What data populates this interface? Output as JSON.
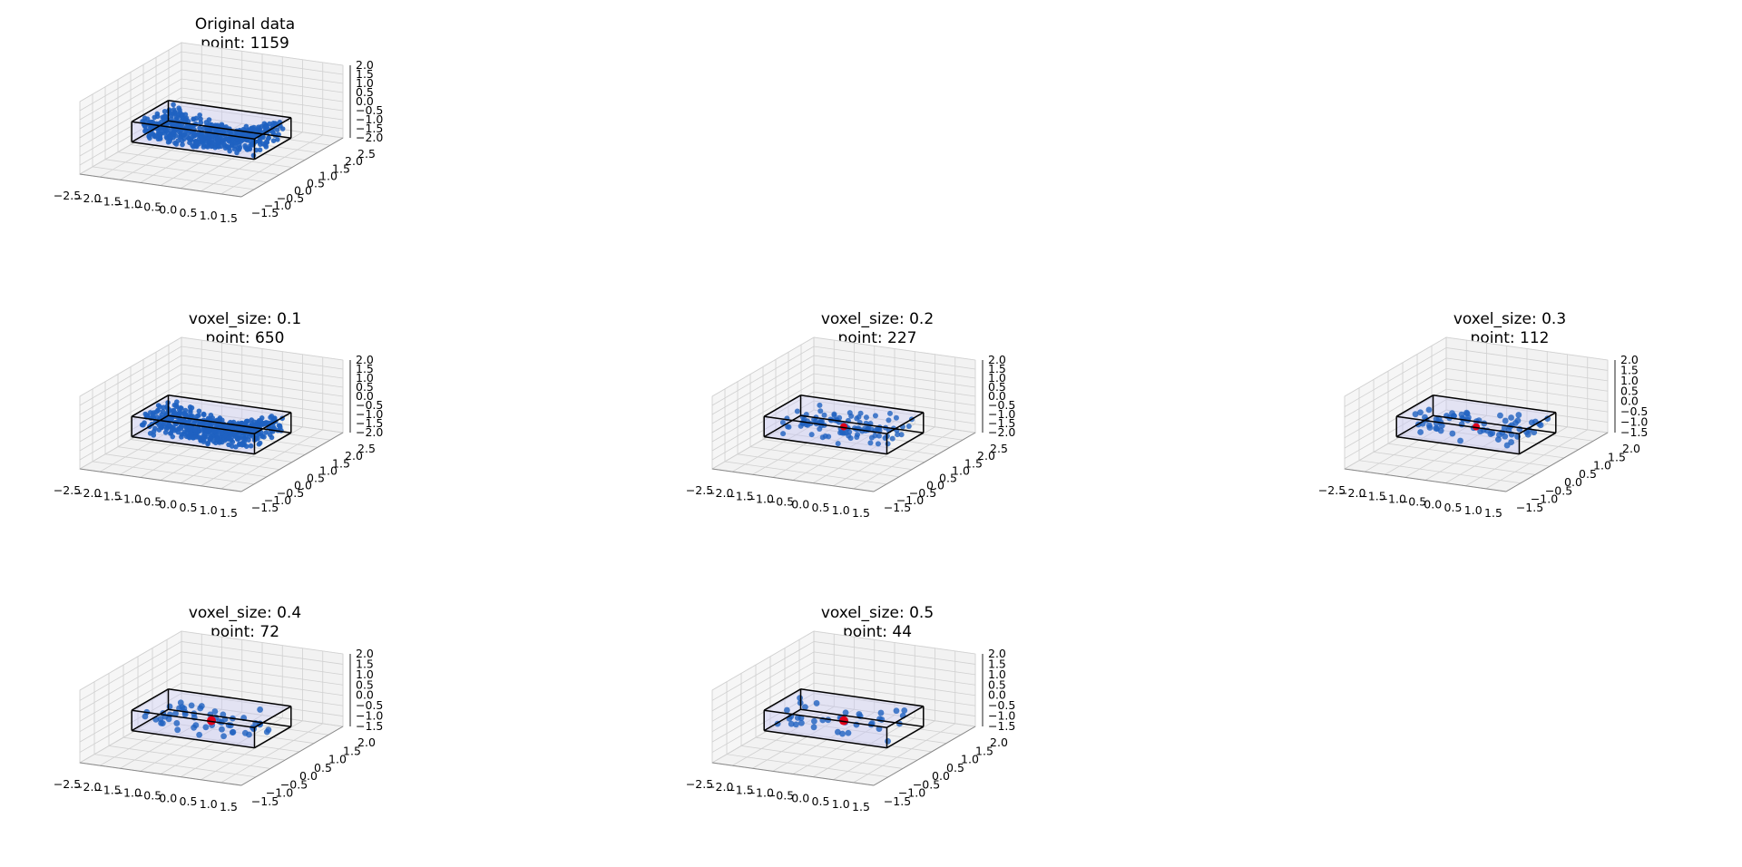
{
  "figure": {
    "panels": [
      {
        "title": "Original data",
        "subtitle": "point: 1159",
        "highlight": false,
        "z_ticks": [
          "2.0",
          "1.5",
          "1.0",
          "0.5",
          "0.0",
          "−0.5",
          "−1.0",
          "−1.5",
          "−2.0"
        ],
        "y_ticks": [
          "−1.5",
          "−1.0",
          "−0.5",
          "0.0",
          "0.5",
          "1.0",
          "1.5",
          "2.0",
          "2.5"
        ]
      },
      {
        "title": "voxel_size: 0.1",
        "subtitle": "point: 650",
        "highlight": false,
        "z_ticks": [
          "2.0",
          "1.5",
          "1.0",
          "0.5",
          "0.0",
          "−0.5",
          "−1.0",
          "−1.5",
          "−2.0"
        ],
        "y_ticks": [
          "−1.5",
          "−1.0",
          "−0.5",
          "0.0",
          "0.5",
          "1.0",
          "1.5",
          "2.0",
          "2.5"
        ]
      },
      {
        "title": "voxel_size: 0.2",
        "subtitle": "point: 227",
        "highlight": true,
        "z_ticks": [
          "2.0",
          "1.5",
          "1.0",
          "0.5",
          "0.0",
          "−0.5",
          "−1.0",
          "−1.5",
          "−2.0"
        ],
        "y_ticks": [
          "−1.5",
          "−1.0",
          "−0.5",
          "0.0",
          "0.5",
          "1.0",
          "1.5",
          "2.0",
          "2.5"
        ]
      },
      {
        "title": "voxel_size: 0.3",
        "subtitle": "point: 112",
        "highlight": true,
        "z_ticks": [
          "2.0",
          "1.5",
          "1.0",
          "0.5",
          "0.0",
          "−0.5",
          "−1.0",
          "−1.5"
        ],
        "y_ticks": [
          "−1.5",
          "−1.0",
          "−0.5",
          "0.0",
          "0.5",
          "1.0",
          "1.5",
          "2.0"
        ]
      },
      {
        "title": "voxel_size: 0.4",
        "subtitle": "point: 72",
        "highlight": true,
        "z_ticks": [
          "2.0",
          "1.5",
          "1.0",
          "0.5",
          "0.0",
          "−0.5",
          "−1.0",
          "−1.5"
        ],
        "y_ticks": [
          "−1.5",
          "−1.0",
          "−0.5",
          "0.0",
          "0.5",
          "1.0",
          "1.5",
          "2.0"
        ]
      },
      {
        "title": "voxel_size: 0.5",
        "subtitle": "point: 44",
        "highlight": true,
        "z_ticks": [
          "2.0",
          "1.5",
          "1.0",
          "0.5",
          "0.0",
          "−0.5",
          "−1.0",
          "−1.5"
        ],
        "y_ticks": [
          "−1.5",
          "−1.0",
          "−0.5",
          "0.0",
          "0.5",
          "1.0",
          "1.5",
          "2.0"
        ]
      }
    ],
    "x_ticks": [
      "−2.5",
      "−2.0",
      "−1.5",
      "−1.0",
      "−0.5",
      "0.0",
      "0.5",
      "1.0",
      "1.5"
    ],
    "colors": {
      "points": "#1f62c1",
      "highlight": "#e0001a",
      "box_edge": "#000000",
      "box_fill": "#c8c8f5",
      "pane": "#f2f2f2",
      "grid": "#d0d0d0"
    }
  },
  "chart_data": [
    {
      "type": "scatter",
      "title": "Original data\npoint: 1159",
      "points": 1159,
      "x_range": [
        -2.5,
        1.5
      ],
      "y_range": [
        -1.5,
        2.5
      ],
      "z_range": [
        -2.0,
        2.0
      ],
      "grid": true
    },
    {
      "type": "scatter",
      "title": "voxel_size: 0.1\npoint: 650",
      "voxel_size": 0.1,
      "points": 650,
      "x_range": [
        -2.5,
        1.5
      ],
      "y_range": [
        -1.5,
        2.5
      ],
      "z_range": [
        -2.0,
        2.0
      ],
      "grid": true
    },
    {
      "type": "scatter",
      "title": "voxel_size: 0.2\npoint: 227",
      "voxel_size": 0.2,
      "points": 227,
      "x_range": [
        -2.5,
        1.5
      ],
      "y_range": [
        -1.5,
        2.5
      ],
      "z_range": [
        -2.0,
        2.0
      ],
      "grid": true
    },
    {
      "type": "scatter",
      "title": "voxel_size: 0.3\npoint: 112",
      "voxel_size": 0.3,
      "points": 112,
      "x_range": [
        -2.5,
        1.5
      ],
      "y_range": [
        -1.5,
        2.0
      ],
      "z_range": [
        -1.5,
        2.0
      ],
      "grid": true
    },
    {
      "type": "scatter",
      "title": "voxel_size: 0.4\npoint: 72",
      "voxel_size": 0.4,
      "points": 72,
      "x_range": [
        -2.5,
        1.5
      ],
      "y_range": [
        -1.5,
        2.0
      ],
      "z_range": [
        -1.5,
        2.0
      ],
      "grid": true
    },
    {
      "type": "scatter",
      "title": "voxel_size: 0.5\npoint: 44",
      "voxel_size": 0.5,
      "points": 44,
      "x_range": [
        -2.5,
        1.5
      ],
      "y_range": [
        -1.5,
        2.0
      ],
      "z_range": [
        -1.5,
        2.0
      ],
      "grid": true
    }
  ]
}
